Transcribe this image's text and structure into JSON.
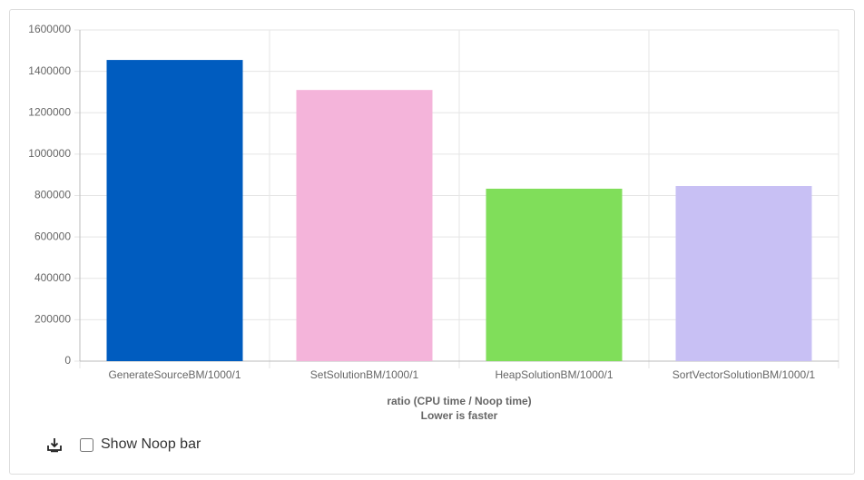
{
  "chart_data": {
    "type": "bar",
    "categories": [
      "GenerateSourceBM/1000/1",
      "SetSolutionBM/1000/1",
      "HeapSolutionBM/1000/1",
      "SortVectorSolutionBM/1000/1"
    ],
    "values": [
      1455000,
      1310000,
      833000,
      846000
    ],
    "colors": [
      "#005cbf",
      "#f4b4da",
      "#80de5a",
      "#c8c0f4"
    ],
    "ylim": [
      0,
      1600000
    ],
    "yticks": [
      0,
      200000,
      400000,
      600000,
      800000,
      1000000,
      1200000,
      1400000,
      1600000
    ],
    "grid": true,
    "x_label": [
      "ratio (CPU time / Noop time)",
      "Lower is faster"
    ]
  },
  "controls": {
    "checkbox_label": "Show Noop bar"
  }
}
